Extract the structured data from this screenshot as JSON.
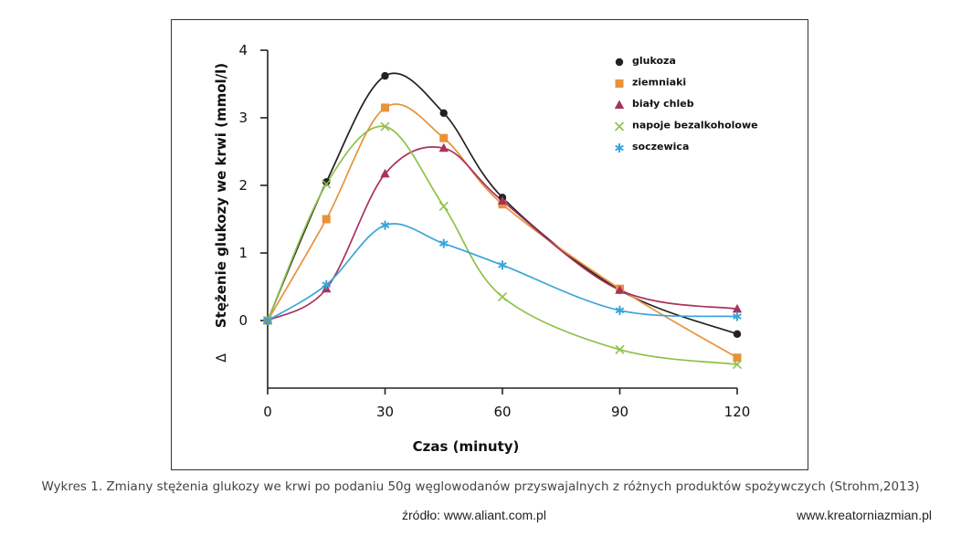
{
  "chart_data": {
    "type": "line",
    "title": "",
    "xlabel": "Czas (minuty)",
    "ylabel": "Stężenie glukozy we krwi (mmol/l)",
    "ylabel_prefix": "Δ",
    "x": [
      0,
      15,
      30,
      45,
      60,
      90,
      120
    ],
    "x_ticks": [
      "0",
      "30",
      "60",
      "90",
      "120"
    ],
    "x_tick_values": [
      0,
      30,
      60,
      90,
      120
    ],
    "y_ticks": [
      "0",
      "1",
      "2",
      "3",
      "4"
    ],
    "y_tick_values": [
      0,
      1,
      2,
      3,
      4
    ],
    "xlim": [
      0,
      120
    ],
    "ylim": [
      -1,
      4
    ],
    "grid": false,
    "legend_position": "top-right",
    "series": [
      {
        "name": "glukoza",
        "marker": "circle",
        "color": "#222222",
        "values": [
          0,
          2.05,
          3.62,
          3.07,
          1.82,
          0.45,
          -0.2
        ]
      },
      {
        "name": "ziemniaki",
        "marker": "square",
        "color": "#e8923a",
        "values": [
          0,
          1.5,
          3.15,
          2.7,
          1.72,
          0.47,
          -0.55
        ]
      },
      {
        "name": "biały chleb",
        "marker": "triangle",
        "color": "#a8325e",
        "values": [
          0,
          0.47,
          2.17,
          2.55,
          1.77,
          0.45,
          0.17
        ]
      },
      {
        "name": "napoje bezalkoholowe",
        "marker": "x",
        "color": "#8fc04a",
        "values": [
          0,
          2.02,
          2.87,
          1.69,
          0.35,
          -0.43,
          -0.65
        ]
      },
      {
        "name": "soczewica",
        "marker": "asterisk",
        "color": "#3aa5d8",
        "values": [
          0,
          0.53,
          1.41,
          1.14,
          0.82,
          0.15,
          0.06
        ]
      }
    ]
  },
  "caption": "Wykres 1. Zmiany stężenia glukozy we krwi po podaniu 50g węglowodanów przyswajalnych z różnych produktów spożywczych (Strohm,2013)",
  "source_left": "źródło: www.aliant.com.pl",
  "source_right": "www.kreatorniazmian.pl"
}
